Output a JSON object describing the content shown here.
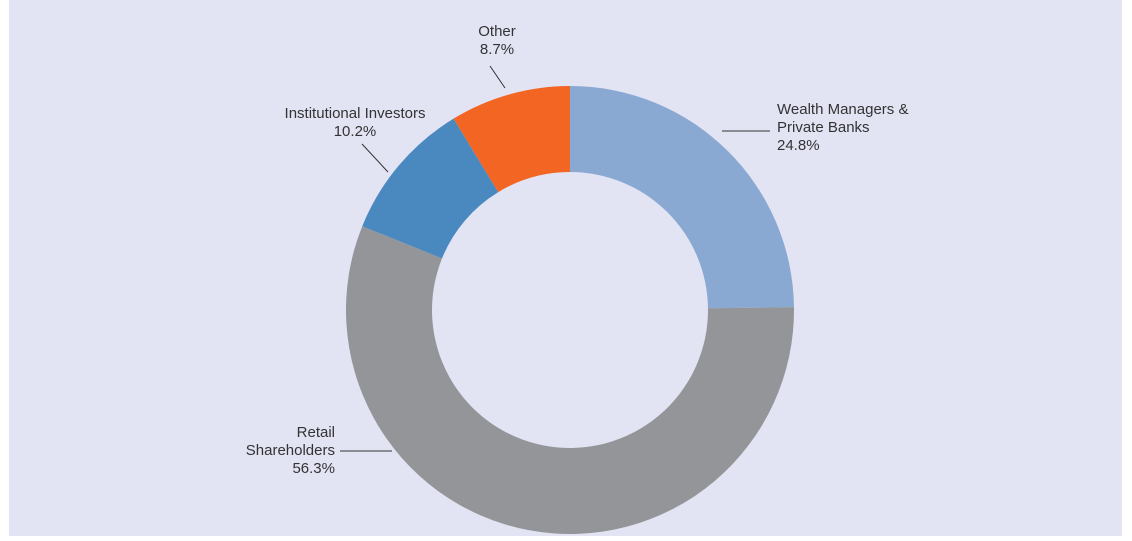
{
  "chart_data": {
    "type": "pie",
    "categories": [
      "Wealth Managers & Private Banks",
      "Retail Shareholders",
      "Institutional Investors",
      "Other"
    ],
    "values": [
      24.8,
      56.3,
      10.2,
      8.7
    ],
    "value_labels": [
      "24.8%",
      "56.3%",
      "10.2%",
      "8.7%"
    ],
    "colors": [
      "#8aa9d2",
      "#939598",
      "#4a89c0",
      "#f26522"
    ],
    "donut": true
  }
}
